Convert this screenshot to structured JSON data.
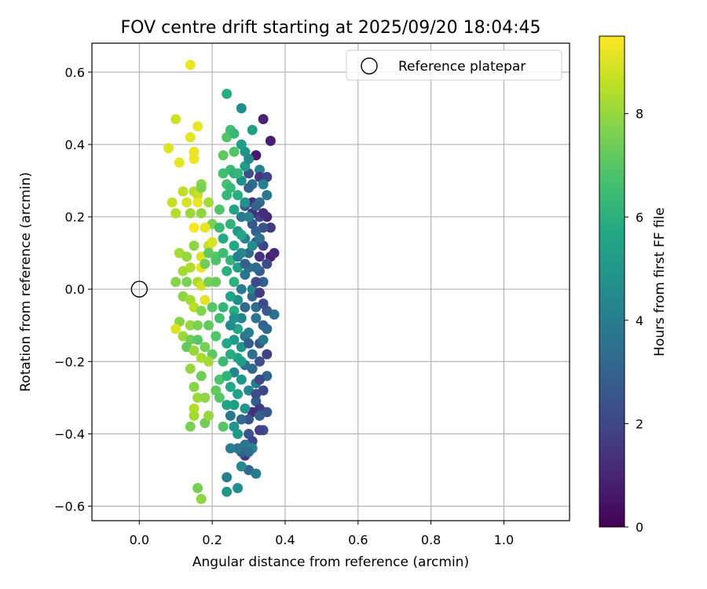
{
  "chart_data": {
    "type": "scatter",
    "title": "FOV centre drift starting at 2025/09/20 18:04:45",
    "xlabel": "Angular distance from reference (arcmin)",
    "ylabel": "Rotation from reference (arcmin)",
    "xlim": [
      -0.13,
      1.18
    ],
    "ylim": [
      -0.64,
      0.68
    ],
    "xticks": [
      0.0,
      0.2,
      0.4,
      0.6,
      0.8,
      1.0
    ],
    "xtick_labels": [
      "0.0",
      "0.2",
      "0.4",
      "0.6",
      "0.8",
      "1.0"
    ],
    "yticks": [
      -0.6,
      -0.4,
      -0.2,
      0.0,
      0.2,
      0.4,
      0.6
    ],
    "ytick_labels": [
      "−0.6",
      "−0.4",
      "−0.2",
      "0.0",
      "0.2",
      "0.4",
      "0.6"
    ],
    "grid": true,
    "legend": {
      "placement": "top-right",
      "entries": [
        "Reference platepar"
      ]
    },
    "reference_point": {
      "x": 0.0,
      "y": 0.0,
      "label": "Reference platepar"
    },
    "colorbar": {
      "label": "Hours from first FF file",
      "range": [
        0,
        9.5
      ],
      "ticks": [
        0,
        2,
        4,
        6,
        8
      ],
      "tick_labels": [
        "0",
        "2",
        "4",
        "6",
        "8"
      ],
      "colormap": "viridis"
    },
    "series": [
      {
        "name": "FOV centre drift",
        "fields": [
          "x",
          "y",
          "hours"
        ],
        "points": [
          [
            0.14,
            0.62,
            9.3
          ],
          [
            0.1,
            0.47,
            8.8
          ],
          [
            0.16,
            0.45,
            9.2
          ],
          [
            0.08,
            0.39,
            9.0
          ],
          [
            0.14,
            0.42,
            9.1
          ],
          [
            0.15,
            0.38,
            9.2
          ],
          [
            0.15,
            0.36,
            9.3
          ],
          [
            0.11,
            0.35,
            9.1
          ],
          [
            0.12,
            0.27,
            8.6
          ],
          [
            0.15,
            0.27,
            8.4
          ],
          [
            0.16,
            0.26,
            8.7
          ],
          [
            0.13,
            0.24,
            8.9
          ],
          [
            0.09,
            0.24,
            8.7
          ],
          [
            0.16,
            0.24,
            9.2
          ],
          [
            0.19,
            0.24,
            8.2
          ],
          [
            0.1,
            0.21,
            8.4
          ],
          [
            0.14,
            0.21,
            8.1
          ],
          [
            0.17,
            0.21,
            7.9
          ],
          [
            0.2,
            0.18,
            7.6
          ],
          [
            0.15,
            0.17,
            9.4
          ],
          [
            0.18,
            0.17,
            9.2
          ],
          [
            0.17,
            0.29,
            7.8
          ],
          [
            0.17,
            0.28,
            7.6
          ],
          [
            0.11,
            0.1,
            8.2
          ],
          [
            0.13,
            0.09,
            8.0
          ],
          [
            0.15,
            0.12,
            7.9
          ],
          [
            0.19,
            0.12,
            8.6
          ],
          [
            0.2,
            0.13,
            8.9
          ],
          [
            0.17,
            0.09,
            9.0
          ],
          [
            0.17,
            0.06,
            9.2
          ],
          [
            0.14,
            0.06,
            8.4
          ],
          [
            0.12,
            0.05,
            8.2
          ],
          [
            0.18,
            0.07,
            7.4
          ],
          [
            0.19,
            0.1,
            7.1
          ],
          [
            0.21,
            0.09,
            7.0
          ],
          [
            0.13,
            0.02,
            7.6
          ],
          [
            0.16,
            0.02,
            8.3
          ],
          [
            0.17,
            0.01,
            8.8
          ],
          [
            0.1,
            0.02,
            7.8
          ],
          [
            0.19,
            0.02,
            7.5
          ],
          [
            0.21,
            0.02,
            7.3
          ],
          [
            0.12,
            -0.02,
            7.9
          ],
          [
            0.14,
            -0.03,
            8.2
          ],
          [
            0.18,
            -0.03,
            9.1
          ],
          [
            0.15,
            -0.05,
            8.5
          ],
          [
            0.17,
            -0.06,
            7.7
          ],
          [
            0.2,
            -0.05,
            7.0
          ],
          [
            0.11,
            -0.09,
            7.8
          ],
          [
            0.14,
            -0.1,
            8.0
          ],
          [
            0.16,
            -0.1,
            7.6
          ],
          [
            0.19,
            -0.1,
            7.2
          ],
          [
            0.1,
            -0.11,
            9.0
          ],
          [
            0.12,
            -0.13,
            8.1
          ],
          [
            0.14,
            -0.14,
            7.4
          ],
          [
            0.16,
            -0.14,
            7.0
          ],
          [
            0.13,
            -0.16,
            7.2
          ],
          [
            0.15,
            -0.17,
            8.0
          ],
          [
            0.18,
            -0.16,
            7.5
          ],
          [
            0.17,
            -0.19,
            8.3
          ],
          [
            0.2,
            -0.18,
            7.1
          ],
          [
            0.19,
            -0.2,
            8.2
          ],
          [
            0.14,
            -0.22,
            8.0
          ],
          [
            0.17,
            -0.24,
            7.4
          ],
          [
            0.15,
            -0.27,
            7.8
          ],
          [
            0.16,
            -0.3,
            8.1
          ],
          [
            0.18,
            -0.3,
            7.9
          ],
          [
            0.15,
            -0.33,
            8.4
          ],
          [
            0.15,
            -0.35,
            8.2
          ],
          [
            0.14,
            -0.38,
            7.6
          ],
          [
            0.18,
            -0.37,
            7.4
          ],
          [
            0.19,
            -0.35,
            8.0
          ],
          [
            0.16,
            -0.55,
            7.5
          ],
          [
            0.17,
            -0.58,
            7.9
          ],
          [
            0.21,
            -0.28,
            7.2
          ],
          [
            0.22,
            -0.3,
            7.0
          ],
          [
            0.22,
            -0.25,
            6.8
          ],
          [
            0.23,
            -0.38,
            7.0
          ],
          [
            0.21,
            -0.13,
            6.9
          ],
          [
            0.22,
            -0.08,
            6.6
          ],
          [
            0.21,
            0.08,
            6.8
          ],
          [
            0.23,
            0.1,
            6.5
          ],
          [
            0.22,
            0.17,
            6.4
          ],
          [
            0.24,
            0.42,
            6.9
          ],
          [
            0.23,
            0.37,
            7.1
          ],
          [
            0.24,
            0.54,
            5.9
          ],
          [
            0.25,
            0.44,
            6.6
          ],
          [
            0.26,
            0.43,
            6.3
          ],
          [
            0.25,
            0.33,
            6.5
          ],
          [
            0.24,
            0.29,
            6.7
          ],
          [
            0.26,
            0.38,
            6.9
          ],
          [
            0.28,
            0.5,
            4.6
          ],
          [
            0.31,
            0.44,
            5.3
          ],
          [
            0.33,
            0.33,
            4.2
          ],
          [
            0.34,
            0.47,
            0.9
          ],
          [
            0.36,
            0.41,
            0.8
          ],
          [
            0.32,
            0.37,
            0.6
          ],
          [
            0.3,
            0.32,
            2.3
          ],
          [
            0.33,
            0.31,
            1.6
          ],
          [
            0.35,
            0.31,
            1.9
          ],
          [
            0.31,
            0.29,
            3.5
          ],
          [
            0.34,
            0.29,
            4.1
          ],
          [
            0.31,
            0.24,
            1.2
          ],
          [
            0.29,
            0.23,
            2.8
          ],
          [
            0.33,
            0.24,
            3.3
          ],
          [
            0.35,
            0.26,
            3.8
          ],
          [
            0.35,
            0.2,
            1.0
          ],
          [
            0.33,
            0.2,
            2.0
          ],
          [
            0.31,
            0.21,
            1.3
          ],
          [
            0.36,
            0.17,
            1.6
          ],
          [
            0.34,
            0.17,
            2.4
          ],
          [
            0.32,
            0.16,
            3.0
          ],
          [
            0.36,
            0.09,
            0.8
          ],
          [
            0.37,
            0.1,
            1.1
          ],
          [
            0.34,
            0.12,
            1.9
          ],
          [
            0.32,
            0.13,
            2.5
          ],
          [
            0.3,
            0.1,
            3.2
          ],
          [
            0.35,
            0.07,
            2.2
          ],
          [
            0.33,
            0.05,
            2.8
          ],
          [
            0.34,
            0.02,
            2.9
          ],
          [
            0.37,
            -0.07,
            3.5
          ],
          [
            0.35,
            -0.06,
            2.7
          ],
          [
            0.32,
            -0.05,
            3.4
          ],
          [
            0.34,
            -0.1,
            3.0
          ],
          [
            0.33,
            -0.15,
            2.6
          ],
          [
            0.35,
            -0.18,
            1.9
          ],
          [
            0.33,
            -0.2,
            2.3
          ],
          [
            0.31,
            -0.22,
            3.3
          ],
          [
            0.35,
            -0.24,
            3.1
          ],
          [
            0.34,
            -0.28,
            2.0
          ],
          [
            0.32,
            -0.31,
            2.8
          ],
          [
            0.33,
            -0.33,
            1.6
          ],
          [
            0.31,
            -0.34,
            1.2
          ],
          [
            0.35,
            -0.34,
            2.5
          ],
          [
            0.33,
            -0.35,
            3.0
          ],
          [
            0.34,
            -0.39,
            2.3
          ],
          [
            0.33,
            -0.39,
            1.8
          ],
          [
            0.3,
            -0.4,
            2.5
          ],
          [
            0.31,
            -0.42,
            2.0
          ],
          [
            0.29,
            -0.43,
            3.7
          ],
          [
            0.31,
            -0.44,
            4.2
          ],
          [
            0.29,
            -0.46,
            1.5
          ],
          [
            0.28,
            -0.45,
            2.9
          ],
          [
            0.27,
            -0.44,
            3.6
          ],
          [
            0.25,
            -0.44,
            4.0
          ],
          [
            0.3,
            -0.5,
            3.1
          ],
          [
            0.32,
            -0.51,
            3.9
          ],
          [
            0.28,
            -0.49,
            4.4
          ],
          [
            0.27,
            -0.55,
            4.7
          ],
          [
            0.24,
            -0.52,
            4.1
          ],
          [
            0.24,
            -0.56,
            5.0
          ],
          [
            0.26,
            -0.38,
            4.9
          ],
          [
            0.25,
            -0.35,
            3.8
          ],
          [
            0.26,
            -0.32,
            5.2
          ],
          [
            0.27,
            -0.29,
            5.4
          ],
          [
            0.25,
            -0.27,
            5.7
          ],
          [
            0.28,
            -0.25,
            5.0
          ],
          [
            0.26,
            -0.23,
            4.3
          ],
          [
            0.29,
            -0.21,
            3.4
          ],
          [
            0.27,
            -0.19,
            5.5
          ],
          [
            0.25,
            -0.18,
            5.9
          ],
          [
            0.28,
            -0.16,
            4.8
          ],
          [
            0.26,
            -0.14,
            5.1
          ],
          [
            0.29,
            -0.13,
            3.7
          ],
          [
            0.27,
            -0.11,
            5.6
          ],
          [
            0.25,
            -0.1,
            4.5
          ],
          [
            0.28,
            -0.08,
            4.2
          ],
          [
            0.26,
            -0.06,
            5.8
          ],
          [
            0.29,
            -0.05,
            3.3
          ],
          [
            0.27,
            -0.03,
            4.7
          ],
          [
            0.25,
            -0.02,
            5.4
          ],
          [
            0.28,
            0.0,
            3.9
          ],
          [
            0.26,
            0.02,
            6.0
          ],
          [
            0.29,
            0.04,
            3.6
          ],
          [
            0.27,
            0.06,
            5.3
          ],
          [
            0.25,
            0.08,
            6.2
          ],
          [
            0.28,
            0.1,
            4.4
          ],
          [
            0.26,
            0.12,
            5.7
          ],
          [
            0.29,
            0.14,
            4.0
          ],
          [
            0.27,
            0.16,
            5.0
          ],
          [
            0.25,
            0.18,
            6.1
          ],
          [
            0.28,
            0.2,
            3.8
          ],
          [
            0.26,
            0.22,
            5.5
          ],
          [
            0.29,
            0.24,
            4.8
          ],
          [
            0.27,
            0.26,
            5.9
          ],
          [
            0.25,
            0.28,
            6.4
          ],
          [
            0.28,
            0.3,
            4.6
          ],
          [
            0.26,
            0.32,
            6.0
          ],
          [
            0.29,
            0.34,
            5.2
          ],
          [
            0.3,
            0.28,
            3.0
          ],
          [
            0.31,
            0.18,
            2.6
          ],
          [
            0.3,
            0.06,
            3.7
          ],
          [
            0.31,
            -0.02,
            3.1
          ],
          [
            0.3,
            -0.12,
            4.0
          ],
          [
            0.31,
            -0.18,
            3.5
          ],
          [
            0.3,
            -0.28,
            4.5
          ],
          [
            0.32,
            -0.26,
            3.9
          ],
          [
            0.3,
            -0.36,
            2.4
          ],
          [
            0.32,
            -0.08,
            3.6
          ],
          [
            0.31,
            0.0,
            4.3
          ],
          [
            0.32,
            0.06,
            3.4
          ],
          [
            0.3,
            0.2,
            4.2
          ],
          [
            0.32,
            0.23,
            3.0
          ],
          [
            0.29,
            -0.33,
            4.9
          ],
          [
            0.28,
            -0.36,
            3.2
          ],
          [
            0.27,
            -0.4,
            5.0
          ],
          [
            0.24,
            -0.15,
            5.6
          ],
          [
            0.23,
            -0.05,
            6.2
          ],
          [
            0.24,
            0.05,
            6.0
          ],
          [
            0.23,
            0.14,
            5.8
          ],
          [
            0.24,
            0.26,
            6.3
          ],
          [
            0.23,
            0.32,
            6.6
          ],
          [
            0.22,
            0.22,
            6.9
          ],
          [
            0.24,
            -0.24,
            6.1
          ],
          [
            0.23,
            -0.2,
            6.4
          ],
          [
            0.24,
            -0.32,
            5.5
          ],
          [
            0.26,
            -0.08,
            4.8
          ],
          [
            0.27,
            0.09,
            4.1
          ],
          [
            0.28,
            0.15,
            5.6
          ],
          [
            0.28,
            -0.2,
            5.2
          ],
          [
            0.29,
            0.07,
            2.9
          ],
          [
            0.3,
            -0.15,
            2.7
          ],
          [
            0.31,
            0.12,
            4.6
          ],
          [
            0.32,
            0.02,
            2.1
          ],
          [
            0.33,
            -0.01,
            1.7
          ],
          [
            0.33,
            0.09,
            1.4
          ],
          [
            0.34,
            -0.04,
            2.2
          ],
          [
            0.34,
            -0.14,
            3.8
          ],
          [
            0.33,
            -0.25,
            2.0
          ],
          [
            0.34,
            0.21,
            1.2
          ],
          [
            0.33,
            0.14,
            3.6
          ],
          [
            0.35,
            -0.11,
            3.2
          ],
          [
            0.32,
            -0.29,
            2.2
          ],
          [
            0.3,
            -0.45,
            3.4
          ],
          [
            0.29,
            0.38,
            4.9
          ],
          [
            0.3,
            0.36,
            4.4
          ],
          [
            0.28,
            0.4,
            5.3
          ],
          [
            0.27,
            0.32,
            6.2
          ]
        ]
      }
    ]
  }
}
